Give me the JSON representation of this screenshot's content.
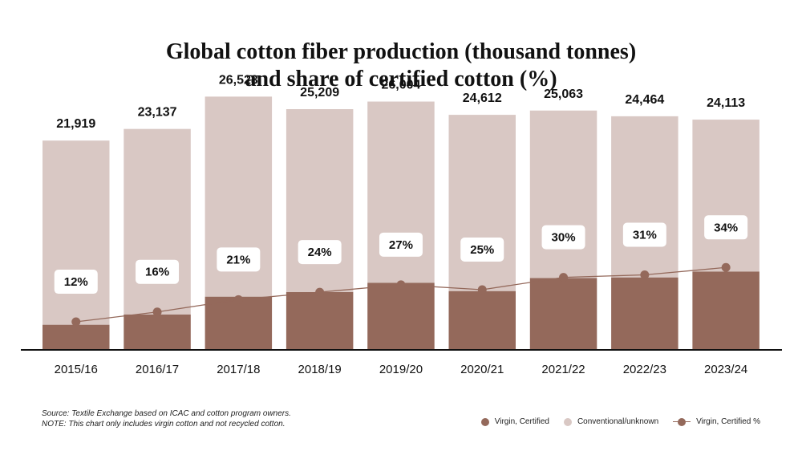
{
  "chart_data": {
    "type": "bar",
    "title_line1": "Global cotton fiber production (thousand tonnes)",
    "title_line2": "and share of certified cotton (%)",
    "categories": [
      "2015/16",
      "2016/17",
      "2017/18",
      "2018/19",
      "2019/20",
      "2020/21",
      "2021/22",
      "2022/23",
      "2023/24"
    ],
    "totals": [
      21919,
      23137,
      26523,
      25209,
      26004,
      24612,
      25063,
      24464,
      24113
    ],
    "total_labels": [
      "21,919",
      "23,137",
      "26,523",
      "25,209",
      "26,004",
      "24,612",
      "25,063",
      "24,464",
      "24,113"
    ],
    "series": [
      {
        "name": "Virgin, Certified",
        "values": [
          2630,
          3702,
          5570,
          6050,
          7021,
          6153,
          7519,
          7584,
          8198
        ],
        "color": "#94695b"
      },
      {
        "name": "Conventional/unknown",
        "values": [
          19289,
          19435,
          20953,
          19159,
          18983,
          18459,
          17544,
          16880,
          15915
        ],
        "color": "#d9c8c4"
      }
    ],
    "line_series": {
      "name": "Virgin, Certified %",
      "values": [
        12,
        16,
        21,
        24,
        27,
        25,
        30,
        31,
        34
      ],
      "labels": [
        "12%",
        "16%",
        "21%",
        "24%",
        "27%",
        "25%",
        "30%",
        "31%",
        "34%"
      ],
      "color": "#94695b"
    },
    "stacked": true,
    "ylim": [
      0,
      28000
    ],
    "line_ylim": [
      0,
      100
    ],
    "grid": false,
    "legend_position": "bottom-right"
  },
  "notes": {
    "source": "Source: Textile Exchange based on ICAC and cotton program owners.",
    "note": "NOTE: This chart only includes virgin cotton and not recycled cotton."
  },
  "legend": {
    "certified": "Virgin, Certified",
    "conventional": "Conventional/unknown",
    "percent": "Virgin, Certified %"
  }
}
